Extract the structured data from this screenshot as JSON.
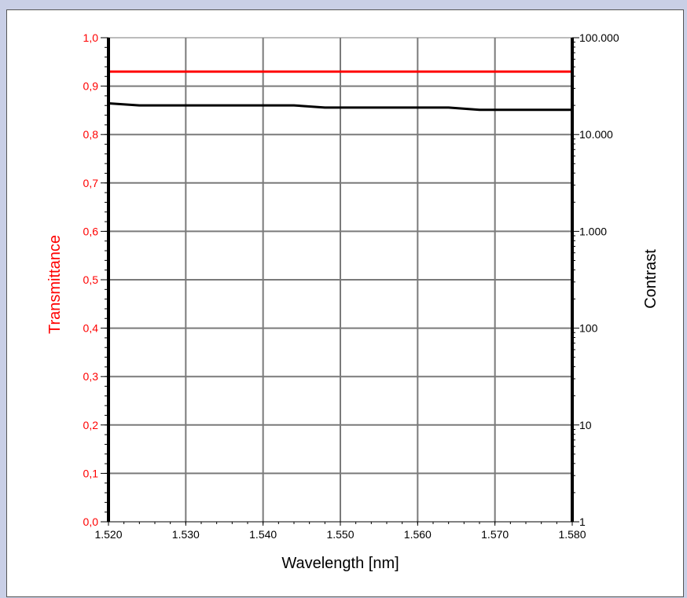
{
  "chart_data": {
    "type": "line",
    "xlabel": "Wavelength [nm]",
    "ylabel": "Transmittance",
    "y2label": "Contrast",
    "xlim": [
      1520,
      1580
    ],
    "ylim": [
      0,
      1
    ],
    "y2lim": [
      1,
      100000
    ],
    "y2scale": "log",
    "grid": true,
    "x_ticks": [
      1520,
      1530,
      1540,
      1550,
      1560,
      1570,
      1580
    ],
    "x_tick_labels": [
      "1.520",
      "1.530",
      "1.540",
      "1.550",
      "1.560",
      "1.570",
      "1.580"
    ],
    "y_ticks": [
      0,
      0.1,
      0.2,
      0.3,
      0.4,
      0.5,
      0.6,
      0.7,
      0.8,
      0.9,
      1.0
    ],
    "y_tick_labels": [
      "0,0",
      "0,1",
      "0,2",
      "0,3",
      "0,4",
      "0,5",
      "0,6",
      "0,7",
      "0,8",
      "0,9",
      "1,0"
    ],
    "y2_ticks": [
      1,
      10,
      100,
      1000,
      10000,
      100000
    ],
    "y2_tick_labels": [
      "1",
      "10",
      "100",
      "1.000",
      "10.000",
      "100.000"
    ],
    "series": [
      {
        "axis": "left",
        "color": "#ff0000",
        "x": [
          1520,
          1530,
          1540,
          1550,
          1560,
          1570,
          1580
        ],
        "y": [
          0.93,
          0.93,
          0.93,
          0.93,
          0.93,
          0.93,
          0.93
        ]
      },
      {
        "axis": "right",
        "color": "#000000",
        "x": [
          1520,
          1524,
          1544,
          1548,
          1564,
          1568,
          1580
        ],
        "y": [
          21000,
          20000,
          20000,
          19000,
          19000,
          18000,
          18000
        ]
      }
    ]
  }
}
